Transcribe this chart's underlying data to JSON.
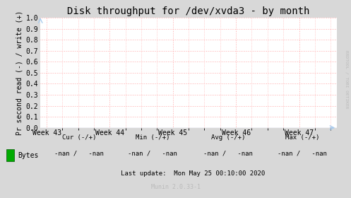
{
  "title": "Disk throughput for /dev/xvda3 - by month",
  "ylabel": "Pr second read (-) / write (+)",
  "ylim": [
    0.0,
    1.0
  ],
  "yticks": [
    0.0,
    0.1,
    0.2,
    0.3,
    0.4,
    0.5,
    0.6,
    0.7,
    0.8,
    0.9,
    1.0
  ],
  "xtick_labels": [
    "Week 43",
    "Week 44",
    "Week 45",
    "Week 46",
    "Week 47"
  ],
  "xtick_positions": [
    0,
    1,
    2,
    3,
    4
  ],
  "xlim": [
    -0.1,
    4.6
  ],
  "bg_color": "#d8d8d8",
  "plot_bg_color": "#ffffff",
  "title_fontsize": 10,
  "axis_label_fontsize": 7,
  "tick_fontsize": 7,
  "legend_color": "#00aa00",
  "legend_label": "Bytes",
  "cur_label": "Cur (-/+)",
  "min_label": "Min (-/+)",
  "avg_label": "Avg (-/+)",
  "max_label": "Max (-/+)",
  "cur_val": "-nan /   -nan",
  "min_val": "-nan /   -nan",
  "avg_val": "-nan /   -nan",
  "max_val": "-nan /   -nan",
  "last_update": "Last update:  Mon May 25 00:10:00 2020",
  "munin_version": "Munin 2.0.33-1",
  "rrdtool_label": "RRDTOOL / TOBI OETIKER",
  "watermark_color": "#bbbbbb",
  "grid_color": "#ffaaaa",
  "arrow_color": "#aaccee"
}
